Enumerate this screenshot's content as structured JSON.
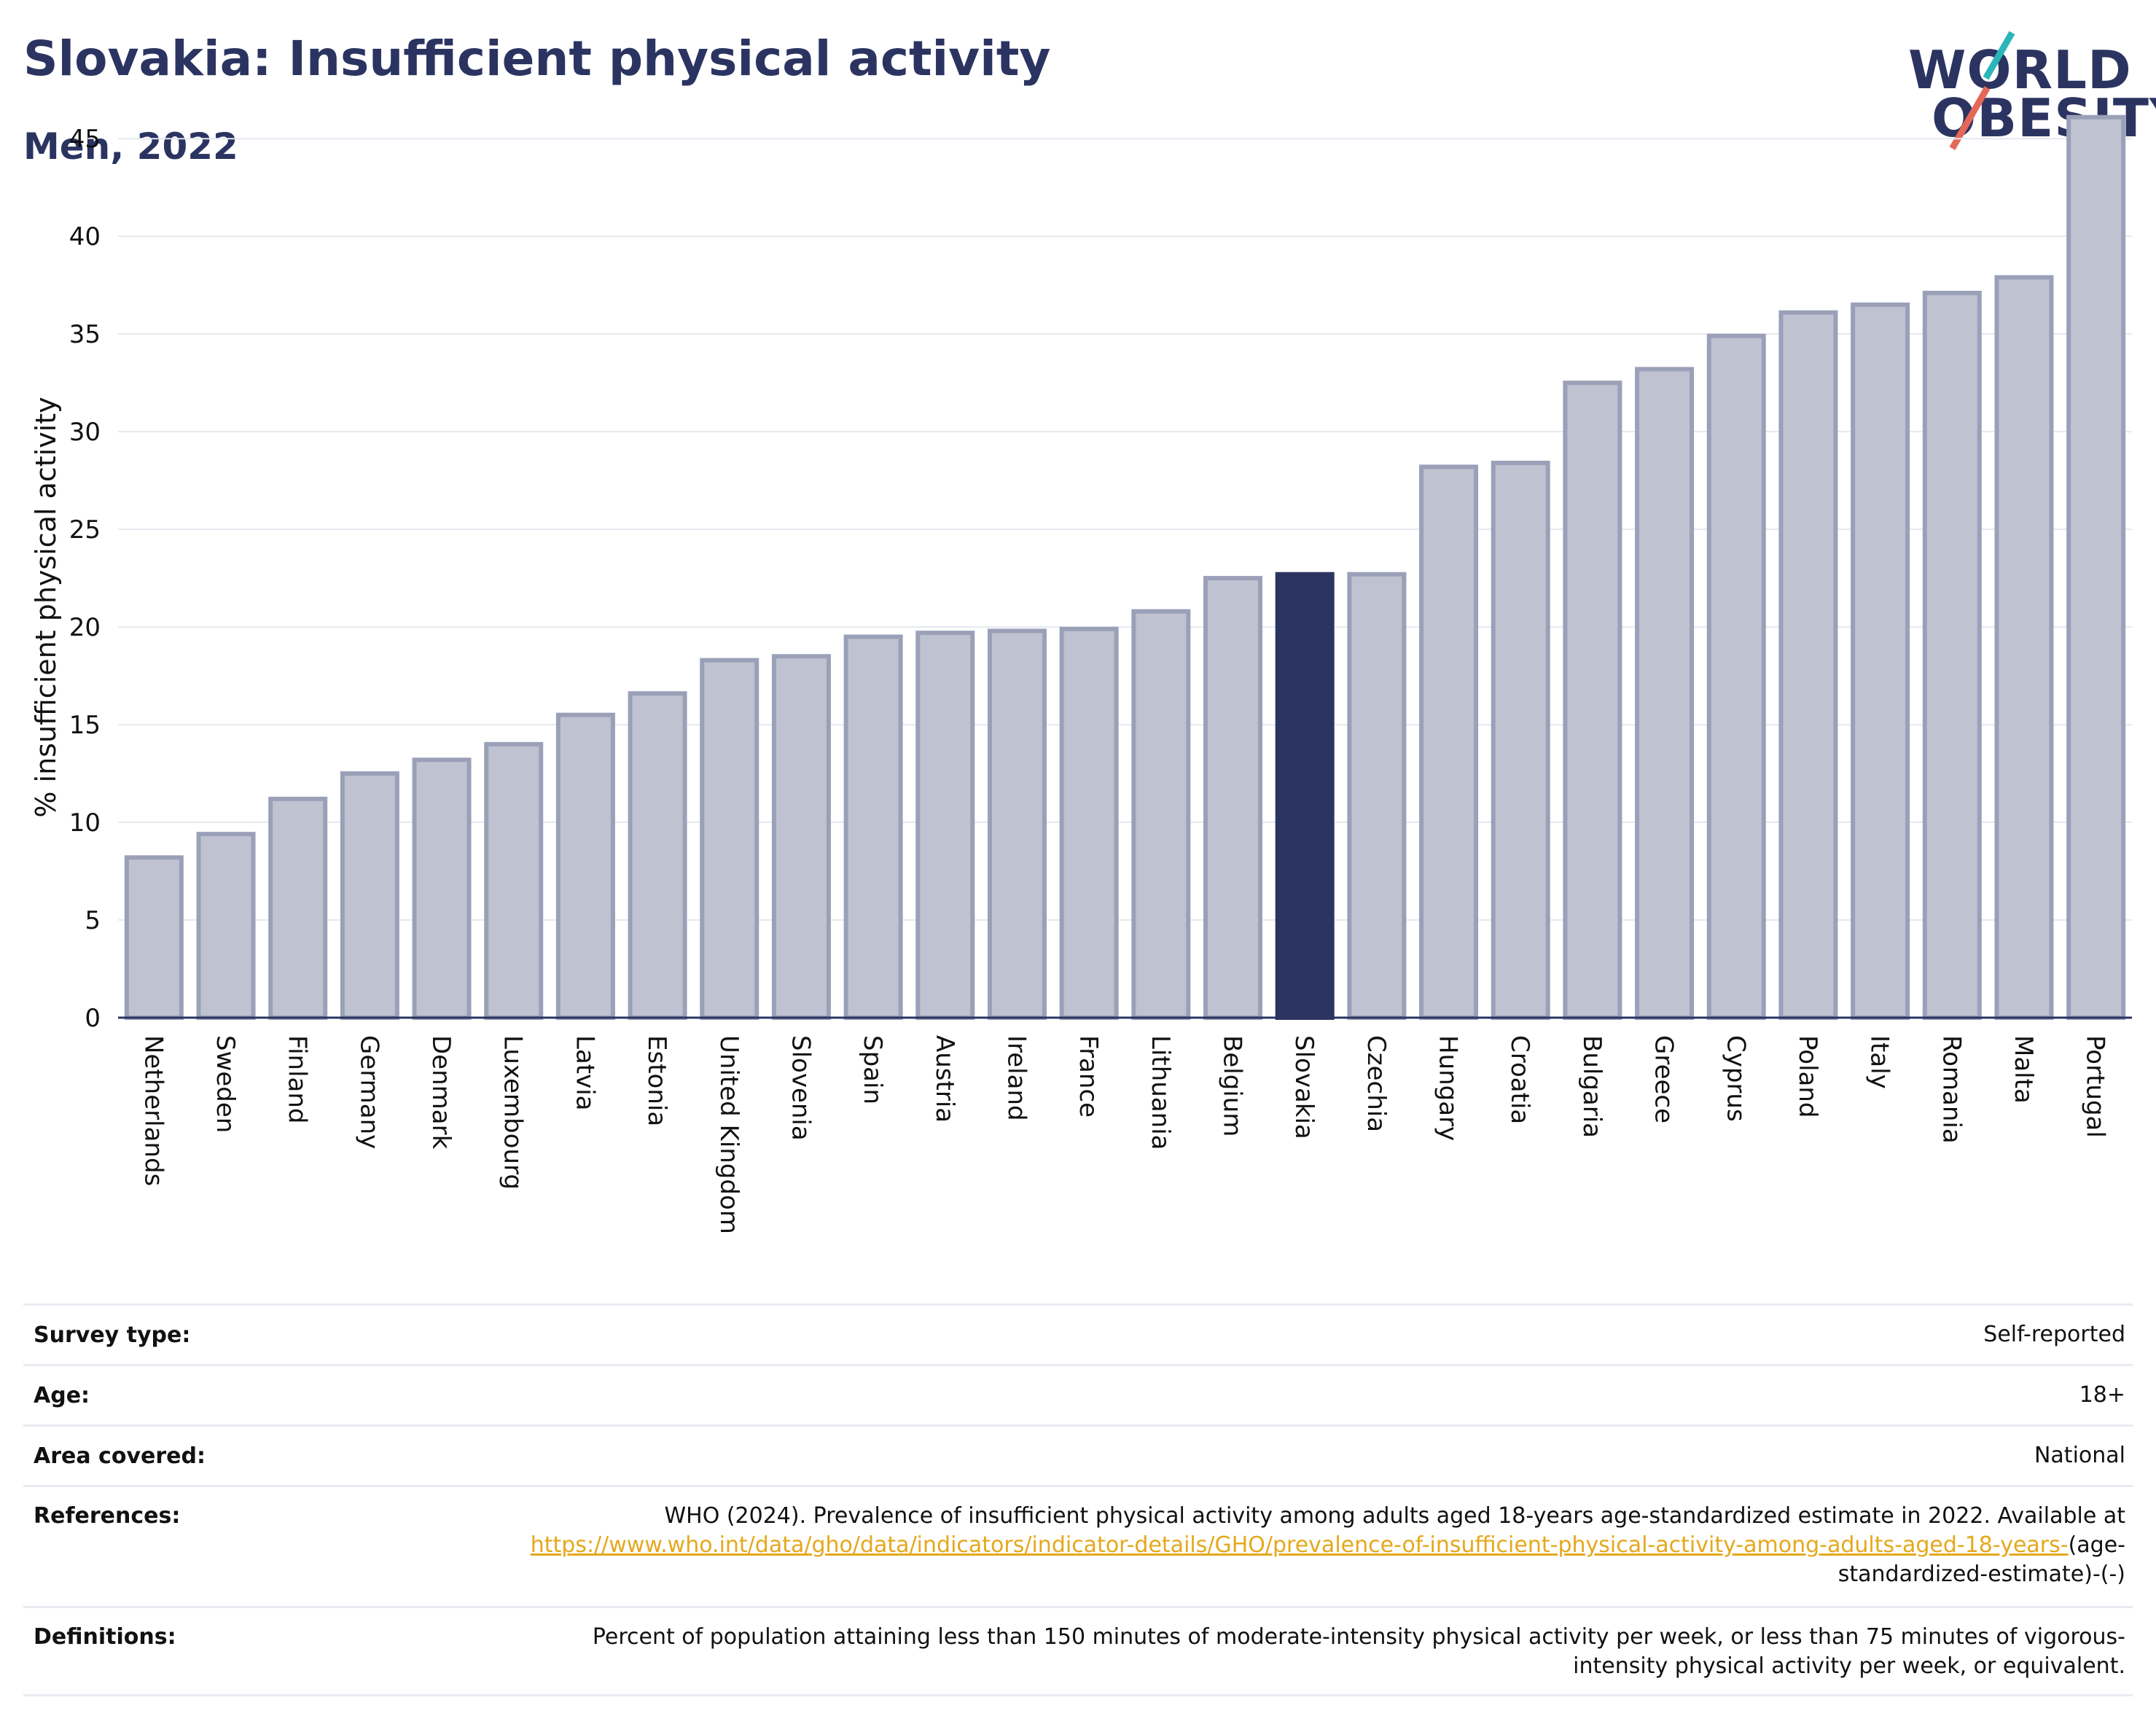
{
  "header": {
    "title": "Slovakia: Insufficient physical activity",
    "subtitle": "Men, 2022",
    "logo_line1": "WORLD",
    "logo_line2": "OBESITY"
  },
  "colors": {
    "highlight": "#2b3461",
    "bar_fill": "#bfc2d0",
    "bar_stroke": "#9aa0b8",
    "gridline": "#e6e8f0",
    "link": "#e5a81c"
  },
  "chart_data": {
    "type": "bar",
    "title": "Slovakia: Insufficient physical activity",
    "subtitle": "Men, 2022",
    "ylabel": "% insufficient physical activity",
    "xlabel": "",
    "ylim": [
      0,
      46.5
    ],
    "yticks": [
      0,
      5,
      10,
      15,
      20,
      25,
      30,
      35,
      40,
      45
    ],
    "grid": true,
    "highlight": "Slovakia",
    "categories": [
      "Netherlands",
      "Sweden",
      "Finland",
      "Germany",
      "Denmark",
      "Luxembourg",
      "Latvia",
      "Estonia",
      "United Kingdom",
      "Slovenia",
      "Spain",
      "Austria",
      "Ireland",
      "France",
      "Lithuania",
      "Belgium",
      "Slovakia",
      "Czechia",
      "Hungary",
      "Croatia",
      "Bulgaria",
      "Greece",
      "Cyprus",
      "Poland",
      "Italy",
      "Romania",
      "Malta",
      "Portugal"
    ],
    "values": [
      8.2,
      9.4,
      11.2,
      12.5,
      13.2,
      14.0,
      15.5,
      16.6,
      18.3,
      18.5,
      19.5,
      19.7,
      19.8,
      19.9,
      20.8,
      22.5,
      22.7,
      22.7,
      28.2,
      28.4,
      32.5,
      33.2,
      34.9,
      36.1,
      36.5,
      37.1,
      37.9,
      46.1
    ]
  },
  "table": {
    "rows": [
      {
        "key": "Survey type:",
        "value": "Self-reported"
      },
      {
        "key": "Age:",
        "value": "18+"
      },
      {
        "key": "Area covered:",
        "value": "National"
      },
      {
        "key": "References:",
        "value_pre": "WHO (2024). Prevalence of insufficient physical activity among adults aged 18-years age-standardized estimate in 2022. Available at",
        "link": "https://www.who.int/data/gho/data/indicators/indicator-details/GHO/prevalence-of-insufficient-physical-activity-among-adults-aged-18-years-",
        "value_post": "(age-standardized-estimate)-(-)"
      },
      {
        "key": "Definitions:",
        "value": "Percent of population attaining less than 150 minutes of moderate-intensity physical activity per week, or less than 75 minutes of vigorous-intensity physical activity per week, or equivalent."
      }
    ]
  }
}
